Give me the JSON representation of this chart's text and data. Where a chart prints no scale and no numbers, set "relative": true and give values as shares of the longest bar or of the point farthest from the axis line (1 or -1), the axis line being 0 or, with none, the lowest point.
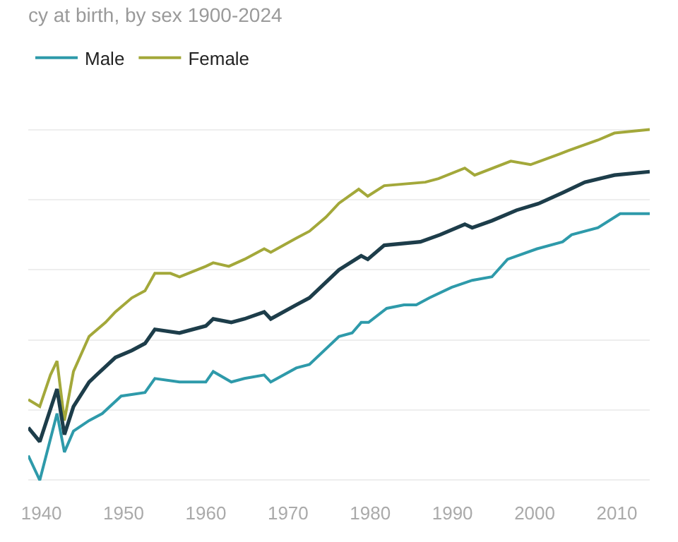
{
  "chart_data": {
    "type": "line",
    "title": "cy at birth, by sex 1900-2024",
    "relative": true,
    "xlim": [
      1938.4,
      2014
    ],
    "xticks": [
      1940,
      1950,
      1960,
      1970,
      1980,
      1990,
      2000,
      2010
    ],
    "grid": "y",
    "legend": "top left",
    "line_style": "solid",
    "marker": "none",
    "series": [
      {
        "color": "#1d3d4a",
        "x": [
          1938.4,
          1939.8,
          1941.9,
          1942.8,
          1943.9,
          1945.8,
          1946.7,
          1949,
          1951,
          1952.6,
          1953.8,
          1956.8,
          1960,
          1960.9,
          1963.1,
          1964.7,
          1967.1,
          1967.9,
          1971,
          1972.6,
          1976.2,
          1978.9,
          1979.7,
          1981.7,
          1986.1,
          1988.5,
          1991.5,
          1992.4,
          1994.8,
          1997.8,
          2000.6,
          2003.4,
          2006.1,
          2009.7,
          2014
        ],
        "values": [
          0.15,
          0.11,
          0.26,
          0.13,
          0.21,
          0.28,
          0.3,
          0.35,
          0.37,
          0.39,
          0.43,
          0.42,
          0.44,
          0.46,
          0.45,
          0.46,
          0.48,
          0.46,
          0.5,
          0.52,
          0.6,
          0.64,
          0.63,
          0.67,
          0.68,
          0.7,
          0.73,
          0.72,
          0.74,
          0.77,
          0.79,
          0.82,
          0.85,
          0.87,
          0.88
        ]
      },
      {
        "name": "Male",
        "color": "#2e9aaa",
        "x": [
          1938.4,
          1939.8,
          1941.9,
          1942.8,
          1943.9,
          1945.8,
          1947.4,
          1949.7,
          1952.6,
          1953.8,
          1956.8,
          1960,
          1960.9,
          1963.1,
          1964.7,
          1967.1,
          1967.9,
          1971,
          1972.6,
          1976.2,
          1977.8,
          1978.9,
          1979.8,
          1982,
          1984.1,
          1985.6,
          1987.2,
          1989.9,
          1992.4,
          1994.8,
          1996.7,
          2000.3,
          2003.4,
          2004.5,
          2007.7,
          2010.4,
          2014
        ],
        "values": [
          0.07,
          0,
          0.19,
          0.08,
          0.14,
          0.17,
          0.19,
          0.24,
          0.25,
          0.29,
          0.28,
          0.28,
          0.31,
          0.28,
          0.29,
          0.3,
          0.28,
          0.32,
          0.33,
          0.41,
          0.42,
          0.45,
          0.45,
          0.49,
          0.5,
          0.5,
          0.52,
          0.55,
          0.57,
          0.58,
          0.63,
          0.66,
          0.68,
          0.7,
          0.72,
          0.76,
          0.76
        ]
      },
      {
        "name": "Female",
        "color": "#a3a83a",
        "x": [
          1938.4,
          1939.8,
          1941.1,
          1941.9,
          1942.8,
          1943.9,
          1945.8,
          1947.8,
          1949,
          1951,
          1952.6,
          1953.8,
          1955.7,
          1956.8,
          1960,
          1960.9,
          1962.8,
          1964.7,
          1967.1,
          1967.9,
          1971,
          1972.6,
          1974.6,
          1976.2,
          1978.6,
          1979.7,
          1981.7,
          1986.7,
          1988.3,
          1991.5,
          1992.7,
          1997.1,
          1999.5,
          2003,
          2004.1,
          2007.7,
          2009.7,
          2014
        ],
        "values": [
          0.23,
          0.21,
          0.3,
          0.34,
          0.17,
          0.31,
          0.41,
          0.45,
          0.48,
          0.52,
          0.54,
          0.59,
          0.59,
          0.58,
          0.61,
          0.62,
          0.61,
          0.63,
          0.66,
          0.65,
          0.69,
          0.71,
          0.75,
          0.79,
          0.83,
          0.81,
          0.84,
          0.85,
          0.86,
          0.89,
          0.87,
          0.91,
          0.9,
          0.93,
          0.94,
          0.97,
          0.99,
          1
        ]
      }
    ]
  }
}
